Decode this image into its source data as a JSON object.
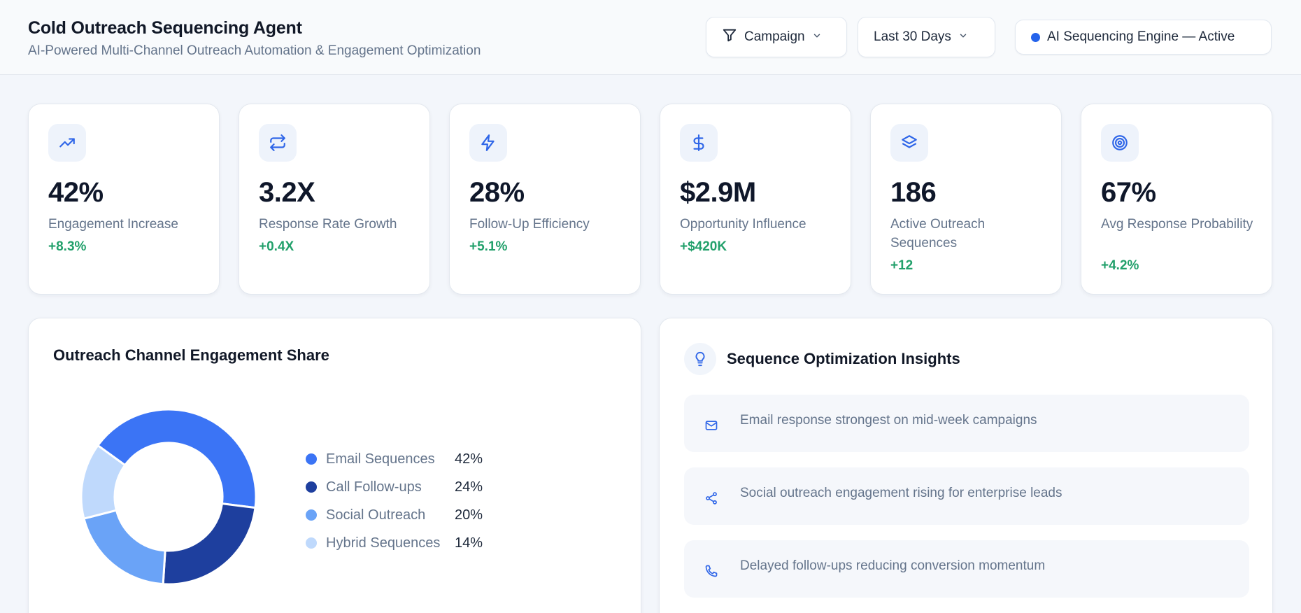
{
  "header": {
    "title": "Cold Outreach Sequencing Agent",
    "subtitle": "AI-Powered Multi-Channel Outreach Automation & Engagement Optimization",
    "campaign_label": "Campaign",
    "range_label": "Last 30 Days",
    "status_label": "AI Sequencing Engine — Active"
  },
  "kpis": [
    {
      "icon": "trending-up-icon",
      "value": "42%",
      "label": "Engagement Increase",
      "delta": "+8.3%"
    },
    {
      "icon": "repeat-icon",
      "value": "3.2X",
      "label": "Response Rate Growth",
      "delta": "+0.4X"
    },
    {
      "icon": "lightning-icon",
      "value": "28%",
      "label": "Follow-Up Efficiency",
      "delta": "+5.1%"
    },
    {
      "icon": "dollar-icon",
      "value": "$2.9M",
      "label": "Opportunity Influence",
      "delta": "+$420K"
    },
    {
      "icon": "layers-icon",
      "value": "186",
      "label": "Active Outreach Sequences",
      "delta": "+12"
    },
    {
      "icon": "target-icon",
      "value": "67%",
      "label": "Avg Response Probability",
      "delta": "+4.2%"
    }
  ],
  "engagement": {
    "title": "Outreach Channel Engagement Share"
  },
  "chart_data": {
    "type": "pie",
    "title": "Outreach Channel Engagement Share",
    "categories": [
      "Email Sequences",
      "Call Follow-ups",
      "Social Outreach",
      "Hybrid Sequences"
    ],
    "values": [
      42,
      24,
      20,
      14
    ],
    "labels": [
      "42%",
      "24%",
      "20%",
      "14%"
    ],
    "colors": [
      "#3b74f5",
      "#1e3f9e",
      "#6aa3f7",
      "#bfd9fc"
    ],
    "legend": "right"
  },
  "insights": {
    "title": "Sequence Optimization Insights",
    "items": [
      {
        "icon": "mail-icon",
        "text": "Email response strongest on mid-week campaigns"
      },
      {
        "icon": "share-icon",
        "text": "Social outreach engagement rising for enterprise leads"
      },
      {
        "icon": "phone-icon",
        "text": "Delayed follow-ups reducing conversion momentum"
      }
    ]
  },
  "colors": {
    "accent": "#2563eb",
    "positive": "#22a06b",
    "background": "#f3f6fb"
  }
}
